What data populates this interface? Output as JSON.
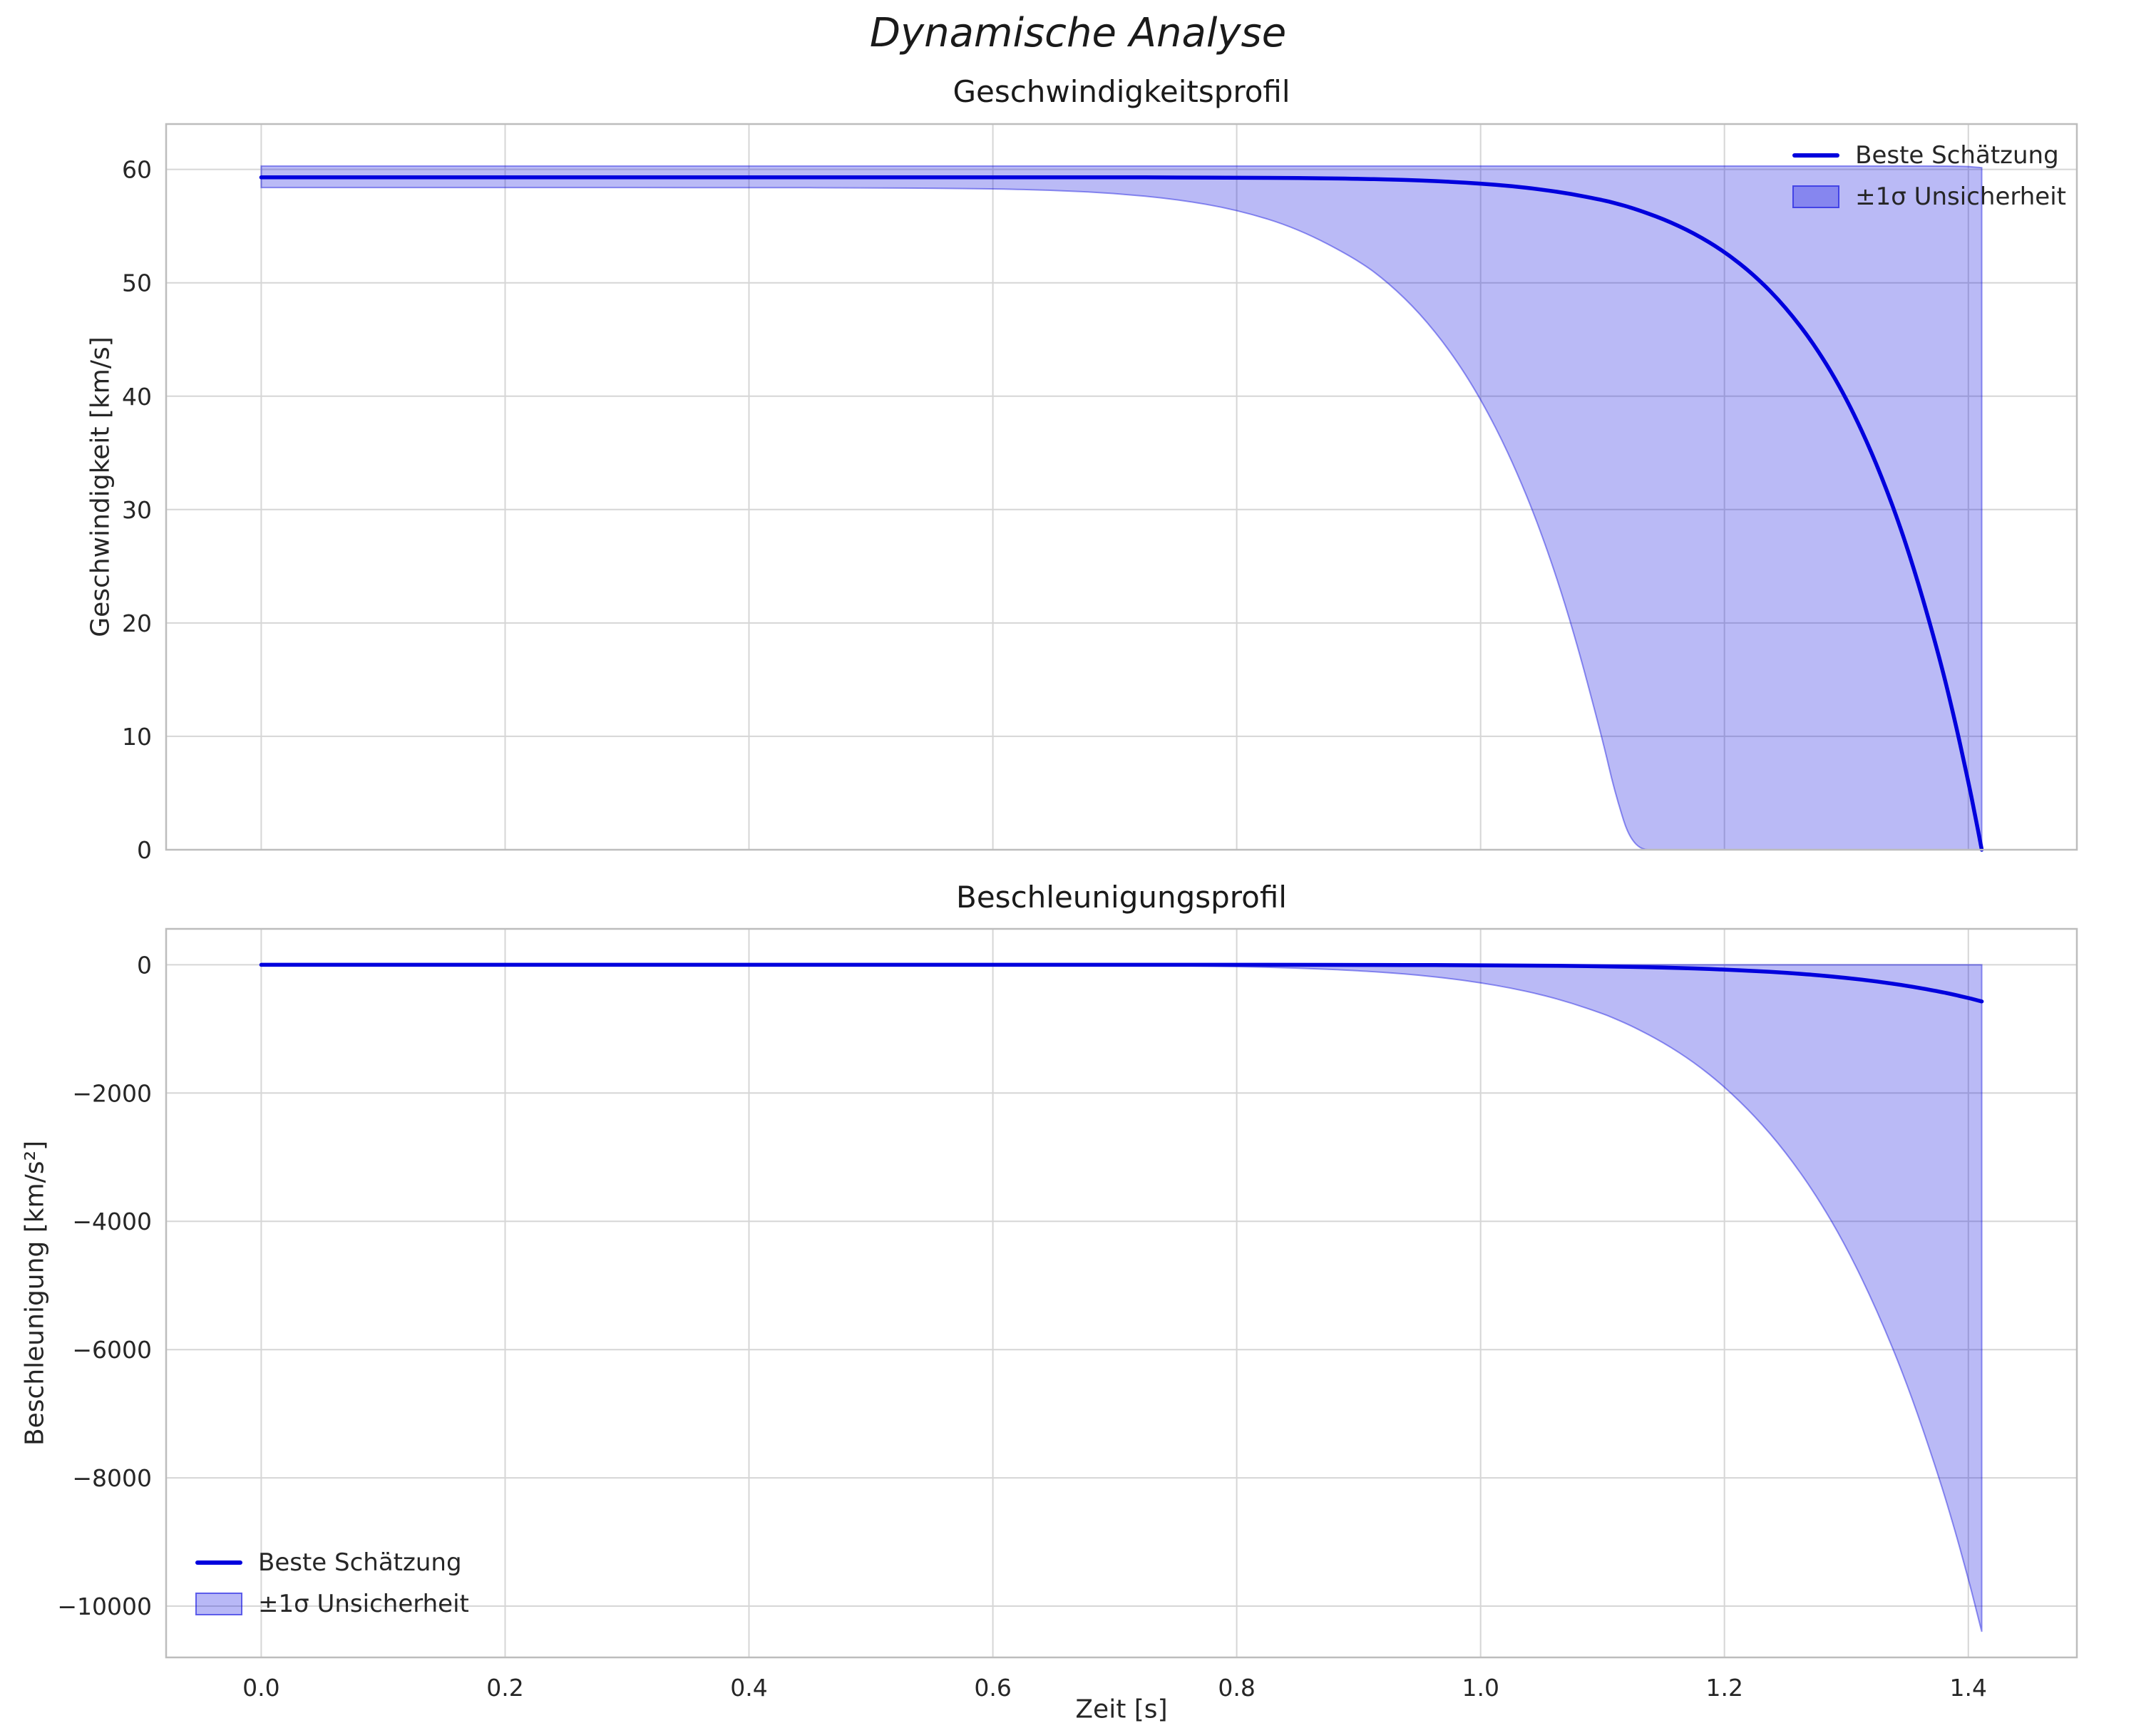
{
  "figure": {
    "title": "Dynamische Analyse"
  },
  "colors": {
    "line": "#0000dd",
    "band": "#0000dd",
    "grid": "#d6d6d6",
    "spine": "#bdbdbd",
    "text": "#262626"
  },
  "chart_data": [
    {
      "type": "line",
      "title": "Geschwindigkeitsprofil",
      "ylabel": "Geschwindigkeit [km/s]",
      "xlabel": "",
      "legend": [
        "Beste Schätzung",
        "±1σ Unsicherheit"
      ],
      "legend_position": "upper-right",
      "grid": true,
      "xlim": [
        -0.078,
        1.489
      ],
      "ylim": [
        0,
        64
      ],
      "xticks": [
        0.0,
        0.2,
        0.4,
        0.6,
        0.8,
        1.0,
        1.2,
        1.4
      ],
      "xticklabels": [],
      "yticks": [
        0,
        10,
        20,
        30,
        40,
        50,
        60
      ],
      "yticklabels": [
        "0",
        "10",
        "20",
        "30",
        "40",
        "50",
        "60"
      ],
      "x": [
        0,
        0.1,
        0.2,
        0.3,
        0.4,
        0.5,
        0.6,
        0.65,
        0.7,
        0.75,
        0.8,
        0.85,
        0.9,
        0.925,
        0.95,
        0.975,
        1.0,
        1.025,
        1.05,
        1.075,
        1.1,
        1.11,
        1.125,
        1.15,
        1.175,
        1.2,
        1.225,
        1.25,
        1.275,
        1.3,
        1.325,
        1.35,
        1.375,
        1.39,
        1.4,
        1.405,
        1.411
      ],
      "series": [
        {
          "name": "Beste Schätzung",
          "role": "line",
          "values": [
            59.3,
            59.3,
            59.3,
            59.3,
            59.3,
            59.3,
            59.3,
            59.3,
            59.3,
            59.29,
            59.27,
            59.24,
            59.17,
            59.11,
            59.03,
            58.91,
            58.75,
            58.53,
            58.23,
            57.83,
            57.3,
            57.03,
            56.58,
            55.63,
            54.38,
            52.75,
            50.63,
            47.88,
            44.37,
            39.86,
            34.06,
            26.78,
            17.55,
            10.94,
            5.99,
            3.34,
            0
          ]
        },
        {
          "name": "+1σ Grenze",
          "role": "band-upper",
          "values": [
            60.3,
            60.3,
            60.3,
            60.3,
            60.3,
            60.3,
            60.3,
            60.3,
            60.3,
            60.3,
            60.3,
            60.3,
            60.3,
            60.3,
            60.3,
            60.3,
            60.3,
            60.3,
            60.3,
            60.3,
            60.3,
            60.3,
            60.3,
            60.3,
            60.3,
            60.3,
            60.3,
            60.3,
            60.3,
            60.3,
            60.3,
            60.3,
            60.3,
            60.28,
            60.25,
            60.2,
            60.15
          ]
        },
        {
          "name": "−1σ Grenze",
          "role": "band-lower",
          "values": [
            58.4,
            58.4,
            58.4,
            58.4,
            58.39,
            58.38,
            58.29,
            58.16,
            57.89,
            57.38,
            56.45,
            54.8,
            51.98,
            49.94,
            47.33,
            44.01,
            39.8,
            34.54,
            27.98,
            19.81,
            9.73,
            5.06,
            0,
            0,
            0,
            0,
            0,
            0,
            0,
            0,
            0,
            0,
            0,
            0,
            0,
            0,
            0
          ]
        }
      ]
    },
    {
      "type": "line",
      "title": "Beschleunigungsprofil",
      "ylabel": "Beschleunigung [km/s²]",
      "xlabel": "Zeit [s]",
      "legend": [
        "Beste Schätzung",
        "±1σ Unsicherheit"
      ],
      "legend_position": "lower-left",
      "grid": true,
      "xlim": [
        -0.078,
        1.489
      ],
      "ylim": [
        -10800,
        560
      ],
      "xticks": [
        0.0,
        0.2,
        0.4,
        0.6,
        0.8,
        1.0,
        1.2,
        1.4
      ],
      "xticklabels": [
        "0.0",
        "0.2",
        "0.4",
        "0.6",
        "0.8",
        "1.0",
        "1.2",
        "1.4"
      ],
      "yticks": [
        0,
        -2000,
        -4000,
        -6000,
        -8000,
        -10000
      ],
      "yticklabels": [
        "0",
        "−2000",
        "−4000",
        "−6000",
        "−8000",
        "−10000"
      ],
      "x": [
        0,
        0.1,
        0.2,
        0.3,
        0.4,
        0.5,
        0.6,
        0.65,
        0.7,
        0.75,
        0.8,
        0.85,
        0.9,
        0.925,
        0.95,
        0.975,
        1.0,
        1.025,
        1.05,
        1.075,
        1.1,
        1.11,
        1.125,
        1.15,
        1.175,
        1.2,
        1.225,
        1.25,
        1.275,
        1.3,
        1.325,
        1.35,
        1.375,
        1.39,
        1.4,
        1.405,
        1.411
      ],
      "series": [
        {
          "name": "Beste Schätzung",
          "role": "line",
          "values": [
            0,
            0,
            0,
            0,
            0,
            0,
            -0.01,
            -0.03,
            -0.08,
            -0.2,
            -0.45,
            -0.96,
            -2.0,
            -2.8,
            -3.9,
            -5.4,
            -7.5,
            -10.2,
            -13.8,
            -18.6,
            -24.8,
            -27.8,
            -32.9,
            -43.4,
            -56.9,
            -74.2,
            -96.4,
            -124.2,
            -159.2,
            -203.4,
            -259.1,
            -327.4,
            -412.9,
            -473.1,
            -517.8,
            -541.6,
            -571.5
          ]
        },
        {
          "name": "+1σ Grenze",
          "role": "band-upper",
          "values": [
            0,
            0,
            0,
            0,
            0,
            0,
            0,
            0,
            0,
            0,
            0,
            0,
            0,
            0,
            0,
            0,
            0,
            0,
            0,
            0,
            0,
            0,
            0,
            0,
            0,
            0,
            0,
            0,
            0,
            0,
            0,
            0,
            0,
            0,
            0,
            0,
            0
          ]
        },
        {
          "name": "−1σ Grenze",
          "role": "band-lower",
          "values": [
            0,
            0,
            0,
            0,
            -0.1,
            -0.2,
            -1.3,
            -3.0,
            -6.6,
            -13.6,
            -26.8,
            -50.8,
            -92.5,
            -123.9,
            -163.4,
            -214.5,
            -279.8,
            -362.5,
            -466.9,
            -598.1,
            -762.0,
            -837.9,
            -964.2,
            -1213.7,
            -1519.4,
            -1900.2,
            -2360.8,
            -2915.1,
            -3584.9,
            -4397.1,
            -5381.0,
            -6539.5,
            -7931.0,
            -8880.6,
            -9579.4,
            -9945.5,
            -10400.0
          ]
        }
      ]
    }
  ]
}
